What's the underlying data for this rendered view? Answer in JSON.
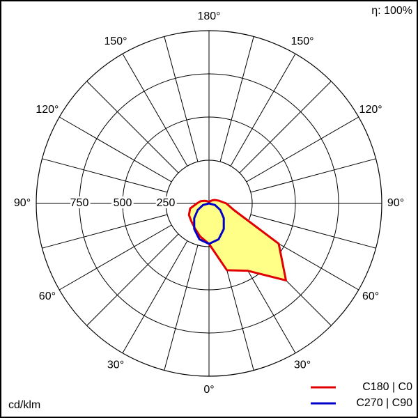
{
  "chart_data": {
    "type": "polar",
    "efficiency_label": "η: 100%",
    "unit_label": "cd/klm",
    "x": [
      -180,
      -165,
      -150,
      -135,
      -120,
      -105,
      -90,
      -75,
      -60,
      -45,
      -30,
      -15,
      0,
      15,
      30,
      45,
      60,
      75,
      90,
      105,
      120,
      135,
      150,
      165,
      180
    ],
    "series": [
      {
        "name": "C180 | C0",
        "color": "#e00000",
        "values": [
          8,
          9,
          12,
          20,
          30,
          50,
          70,
          113,
          134,
          145,
          165,
          198,
          234,
          400,
          450,
          630,
          466,
          150,
          100,
          60,
          40,
          25,
          15,
          10,
          8
        ]
      },
      {
        "name": "C270 | C90",
        "color": "#0000c8",
        "values": [
          0,
          0,
          0,
          0,
          0,
          0,
          0,
          36,
          75,
          121,
          171,
          215,
          234,
          215,
          171,
          121,
          75,
          36,
          0,
          0,
          0,
          0,
          0,
          0,
          0
        ]
      }
    ],
    "fill": "#ffff88",
    "rlim": [
      0,
      1000
    ],
    "rticks": [
      250,
      500,
      750
    ],
    "angle_grid": 15,
    "aticks": [
      {
        "value": 0,
        "label": "0°"
      },
      {
        "value": 30,
        "label": "30°"
      },
      {
        "value": 60,
        "label": "60°"
      },
      {
        "value": 90,
        "label": "90°"
      },
      {
        "value": 120,
        "label": "120°"
      },
      {
        "value": 150,
        "label": "150°"
      },
      {
        "value": 180,
        "label": "180°"
      }
    ]
  }
}
